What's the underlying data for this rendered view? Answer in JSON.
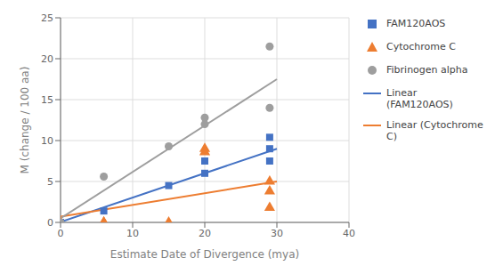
{
  "chart_data": {
    "type": "scatter",
    "xlabel": "Estimate Date of Divergence (mya)",
    "ylabel": "M (change / 100 aa)",
    "xlim": [
      0,
      40
    ],
    "ylim": [
      0,
      25
    ],
    "xticks": [
      0,
      10,
      20,
      30,
      40
    ],
    "yticks": [
      0,
      5,
      10,
      15,
      20,
      25
    ],
    "grid": true,
    "legend": "right",
    "series": [
      {
        "name": "FAM120AOS",
        "type": "scatter",
        "marker": "square",
        "color": "#4472C4",
        "x": [
          0,
          6,
          15,
          20,
          20,
          29,
          29,
          29
        ],
        "values": [
          0,
          1.4,
          4.5,
          6.0,
          7.5,
          7.5,
          9.0,
          10.4
        ]
      },
      {
        "name": "Cytochrome C",
        "type": "scatter",
        "marker": "triangle",
        "color": "#ED7D31",
        "x": [
          0,
          6,
          6,
          15,
          20,
          20,
          29,
          29,
          29
        ],
        "values": [
          0,
          0,
          0,
          0,
          9.0,
          8.6,
          1.8,
          3.8,
          5.0
        ]
      },
      {
        "name": "Fibrinogen alpha",
        "type": "scatter",
        "marker": "circle",
        "color": "#9E9E9E",
        "x": [
          0,
          6,
          15,
          20,
          20,
          29,
          29
        ],
        "values": [
          0,
          5.6,
          9.3,
          12.0,
          12.8,
          14.0,
          21.5
        ]
      },
      {
        "name": "Linear (FAM120AOS)",
        "type": "line",
        "line_style": "solid",
        "color": "#4472C4",
        "x": [
          0,
          30
        ],
        "values": [
          0.05,
          9.0
        ]
      },
      {
        "name": "Linear (Cytochrome\nC)",
        "type": "line",
        "line_style": "solid",
        "color": "#ED7D31",
        "x": [
          0,
          30
        ],
        "values": [
          0.7,
          5.0
        ]
      },
      {
        "type": "line",
        "line_style": "solid",
        "color": "#9E9E9E",
        "x": [
          0,
          30
        ],
        "values": [
          0.5,
          17.5
        ]
      }
    ]
  }
}
